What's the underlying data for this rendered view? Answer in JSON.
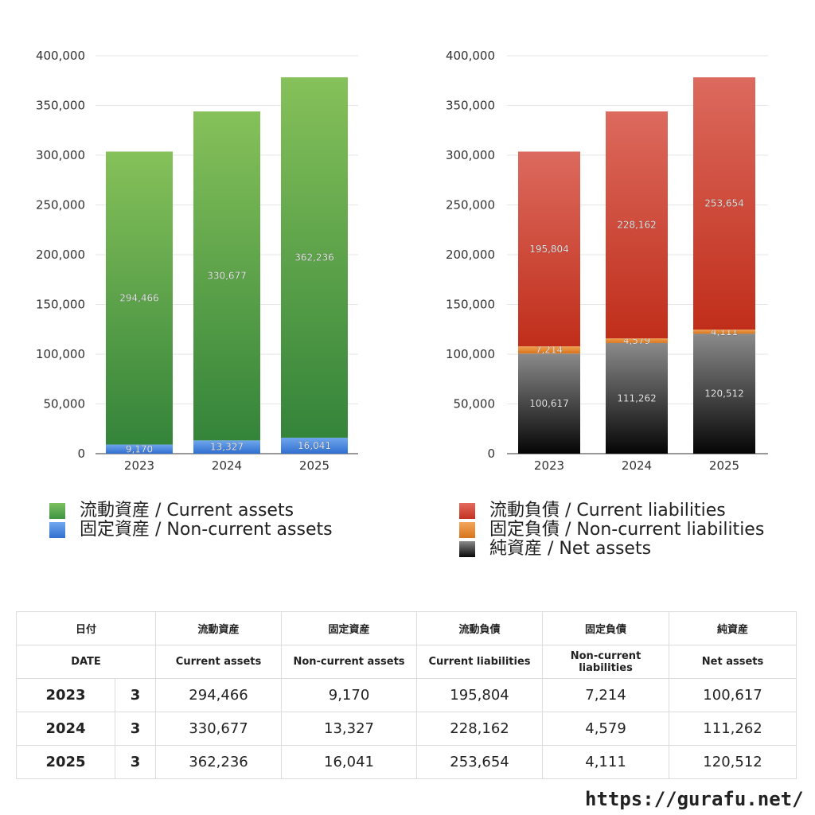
{
  "chart_data": [
    {
      "type": "bar",
      "stacked": true,
      "categories": [
        "2023",
        "2024",
        "2025"
      ],
      "ylim": [
        0,
        400000
      ],
      "y_ticks": [
        "400,000",
        "350,000",
        "300,000",
        "250,000",
        "200,000",
        "150,000",
        "100,000",
        "50,000",
        "0"
      ],
      "grid": true,
      "series": [
        {
          "name": "固定資産 / Non-current assets",
          "values": [
            9170,
            13327,
            16041
          ],
          "labels": [
            "9,170",
            "13,327",
            "16,041"
          ],
          "color_top": "#6fa6ec",
          "color_bottom": "#2f6fd0"
        },
        {
          "name": "流動資産 / Current assets",
          "values": [
            294466,
            330677,
            362236
          ],
          "labels": [
            "294,466",
            "330,677",
            "362,236"
          ],
          "color_top": "#86c15a",
          "color_bottom": "#34843a"
        }
      ],
      "legend": [
        "流動資産 / Current assets",
        "固定資産 / Non-current assets"
      ],
      "legend_colors": [
        "#4caf50",
        "#3b7fdc"
      ],
      "legend_position": "bottom"
    },
    {
      "type": "bar",
      "stacked": true,
      "categories": [
        "2023",
        "2024",
        "2025"
      ],
      "ylim": [
        0,
        400000
      ],
      "y_ticks": [
        "400,000",
        "350,000",
        "300,000",
        "250,000",
        "200,000",
        "150,000",
        "100,000",
        "50,000",
        "0"
      ],
      "grid": true,
      "series": [
        {
          "name": "純資産 / Net assets",
          "values": [
            100617,
            111262,
            120512
          ],
          "labels": [
            "100,617",
            "111,262",
            "120,512"
          ],
          "color_top": "#8a8a8a",
          "color_bottom": "#050505"
        },
        {
          "name": "固定負債 / Non-current liabilities",
          "values": [
            7214,
            4579,
            4111
          ],
          "labels": [
            "7,214",
            "4,579",
            "4,111"
          ],
          "color_top": "#f0a050",
          "color_bottom": "#d8741c"
        },
        {
          "name": "流動負債 / Current liabilities",
          "values": [
            195804,
            228162,
            253654
          ],
          "labels": [
            "195,804",
            "228,162",
            "253,654"
          ],
          "color_top": "#dc6a5e",
          "color_bottom": "#c02e1a"
        }
      ],
      "legend": [
        "流動負債 / Current liabilities",
        "固定負債 / Non-current liabilities",
        "純資産 / Net assets"
      ],
      "legend_colors": [
        "#d64535",
        "#e8883a",
        "#1a1a1a"
      ],
      "legend_position": "bottom"
    }
  ],
  "table": {
    "header_jp": [
      "日付",
      "流動資産",
      "固定資産",
      "流動負債",
      "固定負債",
      "純資産"
    ],
    "header_en": [
      "DATE",
      "Current assets",
      "Non-current assets",
      "Current liabilities",
      "Non-current liabilities",
      "Net assets"
    ],
    "rows": [
      {
        "year": "2023",
        "month": "3",
        "values": [
          "294,466",
          "9,170",
          "195,804",
          "7,214",
          "100,617"
        ]
      },
      {
        "year": "2024",
        "month": "3",
        "values": [
          "330,677",
          "13,327",
          "228,162",
          "4,579",
          "111,262"
        ]
      },
      {
        "year": "2025",
        "month": "3",
        "values": [
          "362,236",
          "16,041",
          "253,654",
          "4,111",
          "120,512"
        ]
      }
    ]
  },
  "footer": {
    "site": "https://gurafu.net/"
  }
}
